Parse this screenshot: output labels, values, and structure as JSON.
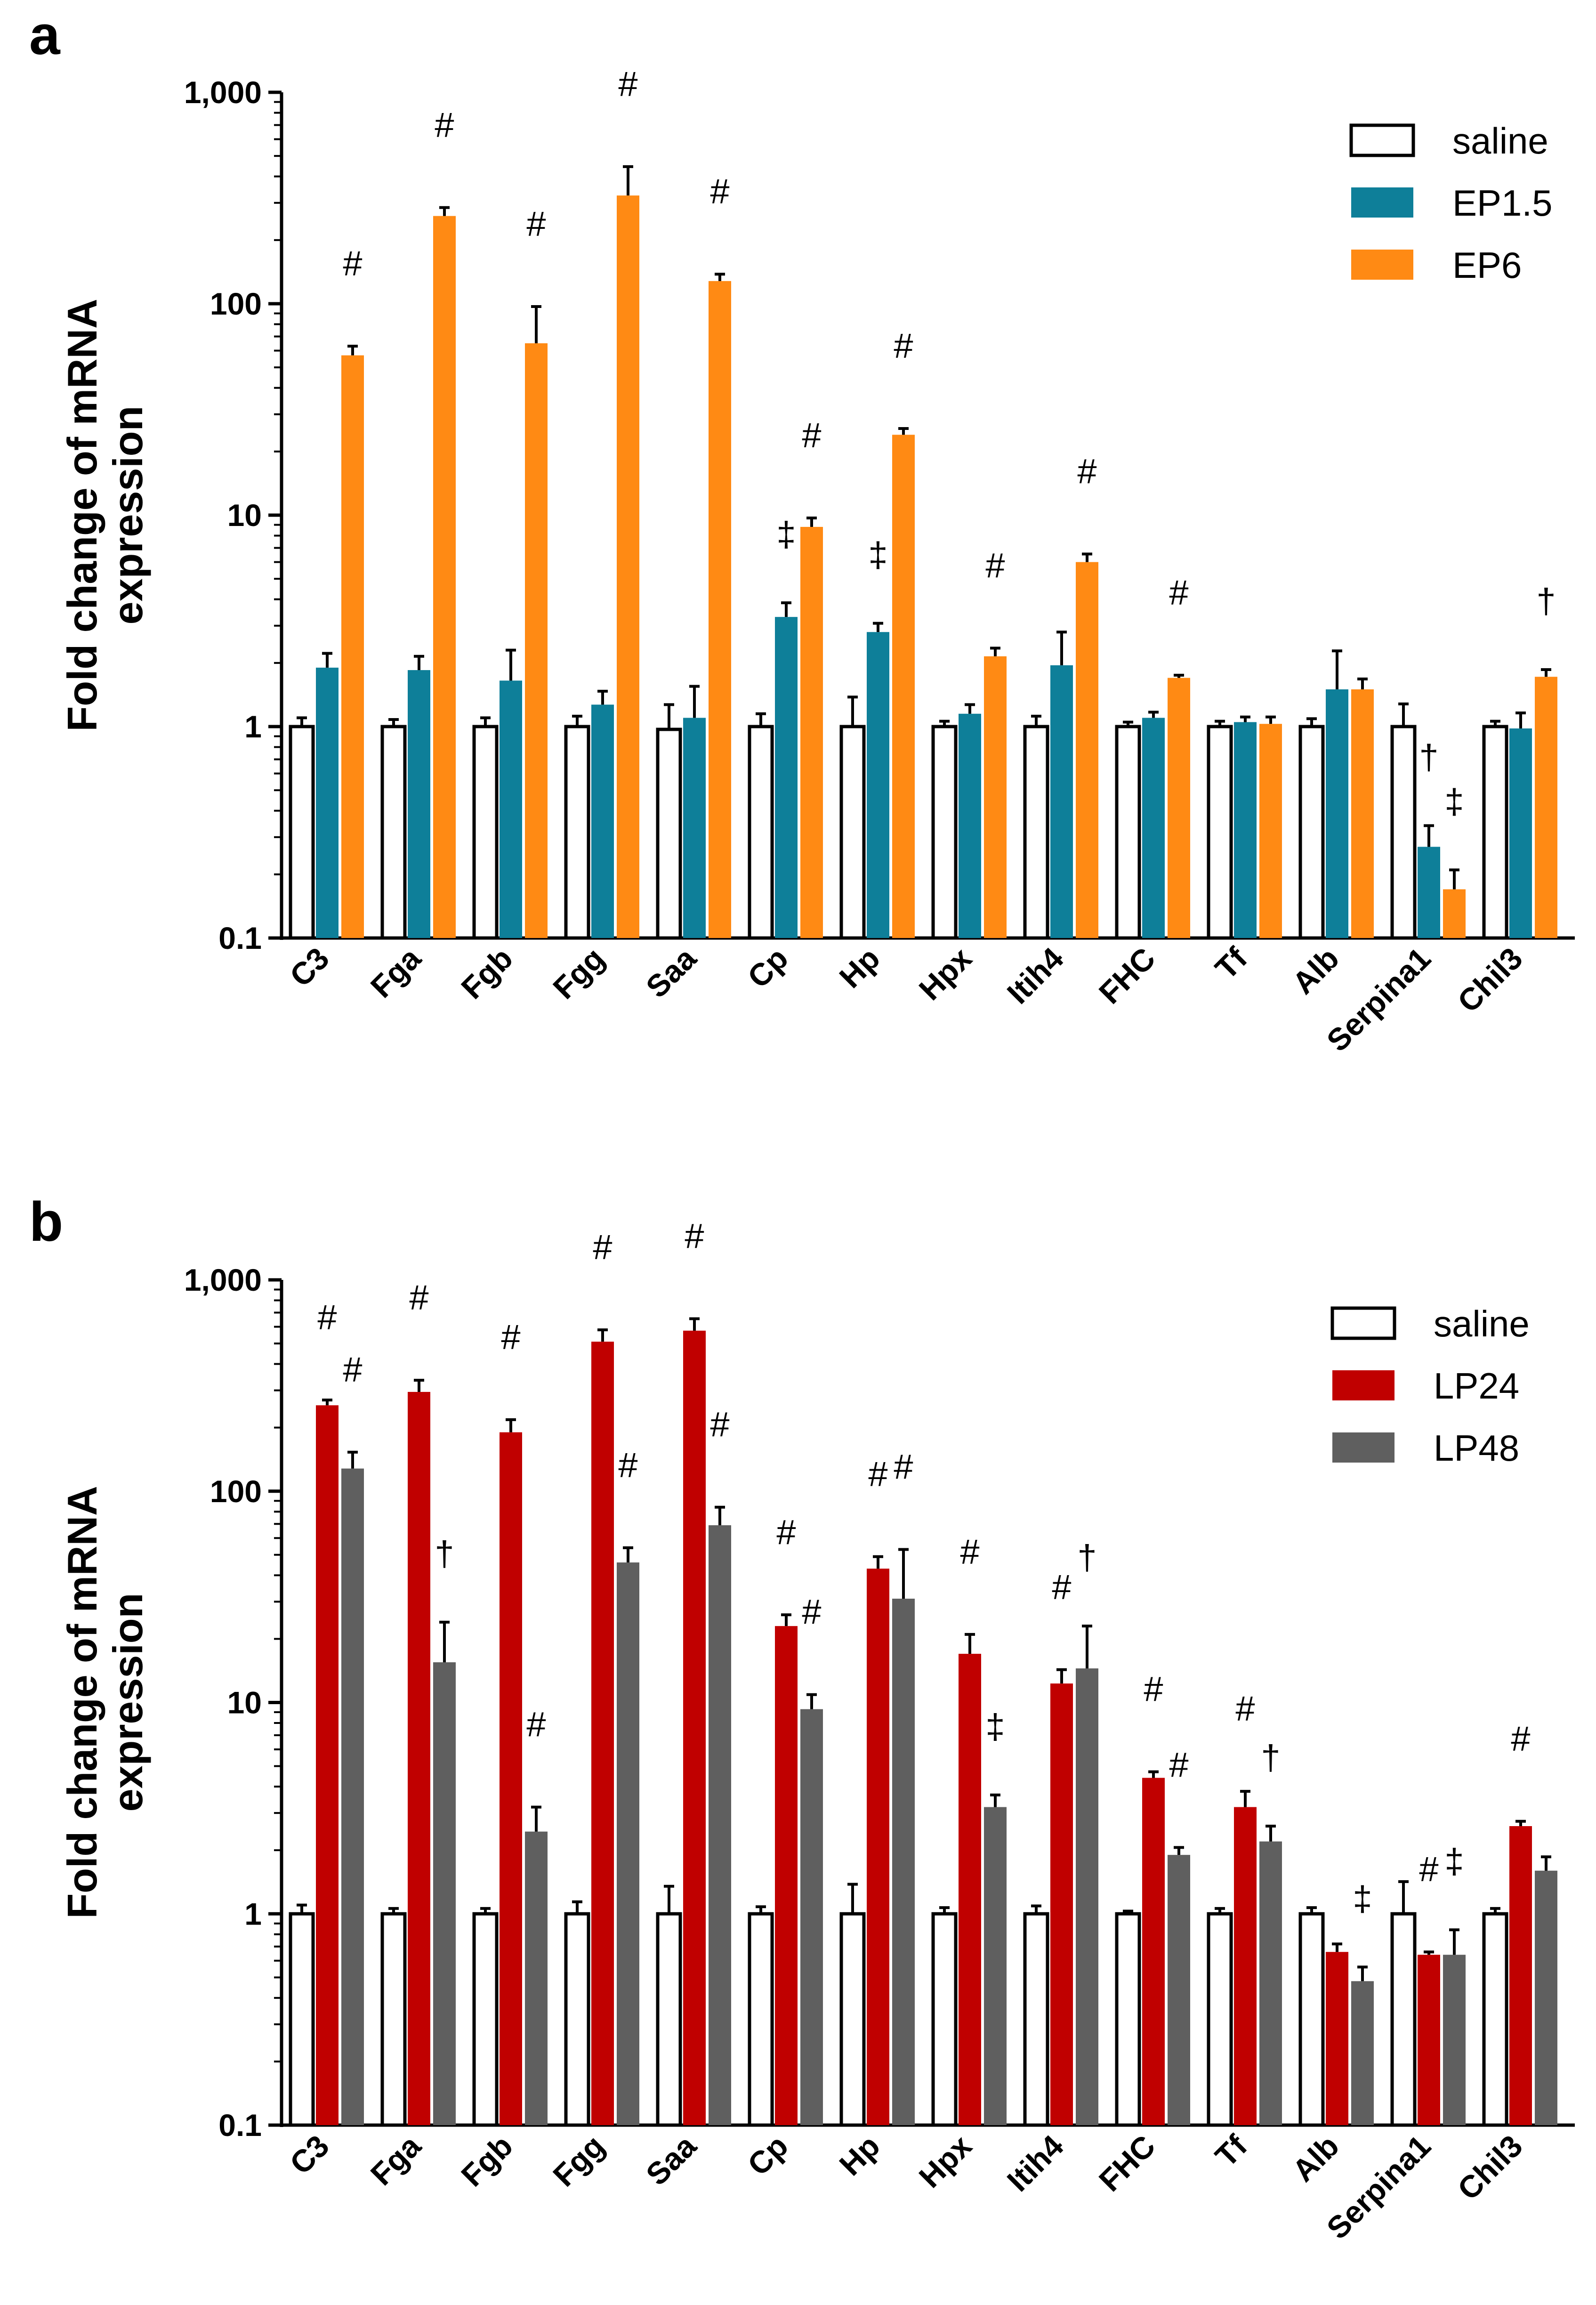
{
  "chart_data": [
    {
      "panel_label": "a",
      "type": "bar",
      "scale": "log",
      "ylabel": [
        "Fold change of mRNA",
        "expression"
      ],
      "ylim": [
        0.1,
        1000
      ],
      "yticks": [
        "0.1",
        "1",
        "10",
        "100",
        "1,000"
      ],
      "categories": [
        "C3",
        "Fga",
        "Fgb",
        "Fgg",
        "Saa",
        "Cp",
        "Hp",
        "Hpx",
        "Itih4",
        "FHC",
        "Tf",
        "Alb",
        "Serpina1",
        "Chil3"
      ],
      "legend_position": "top-right",
      "series": [
        {
          "name": "saline",
          "color": "#ffffff",
          "values": [
            1.0,
            1.0,
            1.0,
            1.0,
            0.97,
            1.0,
            1.0,
            1.0,
            1.0,
            1.0,
            1.0,
            1.0,
            1.0,
            1.0
          ],
          "errors": [
            0.1,
            0.08,
            0.1,
            0.12,
            0.3,
            0.15,
            0.38,
            0.06,
            0.12,
            0.05,
            0.06,
            0.09,
            0.28,
            0.06
          ]
        },
        {
          "name": "EP1.5",
          "color": "#0e7f99",
          "values": [
            1.9,
            1.85,
            1.65,
            1.27,
            1.1,
            3.3,
            2.8,
            1.15,
            1.95,
            1.1,
            1.05,
            1.5,
            0.27,
            0.98
          ],
          "errors": [
            0.32,
            0.3,
            0.65,
            0.2,
            0.45,
            0.55,
            0.28,
            0.12,
            0.85,
            0.07,
            0.06,
            0.78,
            0.07,
            0.18
          ]
        },
        {
          "name": "EP6",
          "color": "#ff8a14",
          "values": [
            57,
            260,
            65,
            325,
            128,
            8.8,
            24,
            2.15,
            6.0,
            1.7,
            1.03,
            1.5,
            0.17,
            1.72
          ]
        },
        {
          "errors": [
            6,
            25,
            32,
            120,
            10,
            0.9,
            1.7,
            0.2,
            0.55,
            0.05,
            0.08,
            0.18,
            0.04,
            0.14
          ]
        }
      ],
      "annotations": [
        {
          "category": "C3",
          "series": "EP6",
          "text": "#"
        },
        {
          "category": "Fga",
          "series": "EP6",
          "text": "#"
        },
        {
          "category": "Fgb",
          "series": "EP6",
          "text": "#"
        },
        {
          "category": "Fgg",
          "series": "EP6",
          "text": "#"
        },
        {
          "category": "Saa",
          "series": "EP6",
          "text": "#"
        },
        {
          "category": "Cp",
          "series": "EP1.5",
          "text": "‡"
        },
        {
          "category": "Cp",
          "series": "EP6",
          "text": "#"
        },
        {
          "category": "Hp",
          "series": "EP1.5",
          "text": "‡"
        },
        {
          "category": "Hp",
          "series": "EP6",
          "text": "#"
        },
        {
          "category": "Hpx",
          "series": "EP6",
          "text": "#"
        },
        {
          "category": "Itih4",
          "series": "EP6",
          "text": "#"
        },
        {
          "category": "FHC",
          "series": "EP6",
          "text": "#"
        },
        {
          "category": "Serpina1",
          "series": "EP1.5",
          "text": "†"
        },
        {
          "category": "Serpina1",
          "series": "EP6",
          "text": "‡"
        },
        {
          "category": "Chil3",
          "series": "EP6",
          "text": "†"
        }
      ]
    },
    {
      "panel_label": "b",
      "type": "bar",
      "scale": "log",
      "ylabel": [
        "Fold change of mRNA",
        "expression"
      ],
      "ylim": [
        0.1,
        1000
      ],
      "yticks": [
        "0.1",
        "1",
        "10",
        "100",
        "1,000"
      ],
      "categories": [
        "C3",
        "Fga",
        "Fgb",
        "Fgg",
        "Saa",
        "Cp",
        "Hp",
        "Hpx",
        "Itih4",
        "FHC",
        "Tf",
        "Alb",
        "Serpina1",
        "Chil3"
      ],
      "legend_position": "top-right",
      "series": [
        {
          "name": "saline",
          "color": "#ffffff",
          "values": [
            1.0,
            1.0,
            1.0,
            1.0,
            1.0,
            1.0,
            1.0,
            1.0,
            1.0,
            1.0,
            1.0,
            1.0,
            1.0,
            1.0
          ],
          "errors": [
            0.1,
            0.06,
            0.06,
            0.14,
            0.35,
            0.08,
            0.38,
            0.07,
            0.09,
            0.03,
            0.06,
            0.07,
            0.42,
            0.06
          ]
        },
        {
          "name": "LP24",
          "color": "#c00000",
          "values": [
            255,
            295,
            190,
            510,
            575,
            23,
            43,
            17,
            12.3,
            4.4,
            3.2,
            0.66,
            0.64,
            2.6
          ],
          "errors": [
            15,
            40,
            28,
            70,
            80,
            3,
            6,
            4,
            2,
            0.3,
            0.6,
            0.06,
            0.02,
            0.14
          ]
        },
        {
          "name": "LP48",
          "color": "#5f5f5f",
          "values": [
            128,
            15.5,
            2.45,
            46,
            69,
            9.3,
            31,
            3.2,
            14.5,
            1.9,
            2.2,
            0.48,
            0.64,
            1.6
          ],
          "errors": [
            25,
            8.5,
            0.75,
            8,
            15,
            1.6,
            22,
            0.45,
            8.5,
            0.16,
            0.4,
            0.08,
            0.2,
            0.26
          ]
        }
      ],
      "annotations": [
        {
          "category": "C3",
          "series": "LP24",
          "text": "#"
        },
        {
          "category": "C3",
          "series": "LP48",
          "text": "#"
        },
        {
          "category": "Fga",
          "series": "LP24",
          "text": "#"
        },
        {
          "category": "Fga",
          "series": "LP48",
          "text": "†"
        },
        {
          "category": "Fgb",
          "series": "LP24",
          "text": "#"
        },
        {
          "category": "Fgb",
          "series": "LP48",
          "text": "#"
        },
        {
          "category": "Fgg",
          "series": "LP24",
          "text": "#"
        },
        {
          "category": "Fgg",
          "series": "LP48",
          "text": "#"
        },
        {
          "category": "Saa",
          "series": "LP24",
          "text": "#"
        },
        {
          "category": "Saa",
          "series": "LP48",
          "text": "#"
        },
        {
          "category": "Cp",
          "series": "LP24",
          "text": "#"
        },
        {
          "category": "Cp",
          "series": "LP48",
          "text": "#"
        },
        {
          "category": "Hp",
          "series": "LP24",
          "text": "#"
        },
        {
          "category": "Hp",
          "series": "LP48",
          "text": "#"
        },
        {
          "category": "Hpx",
          "series": "LP24",
          "text": "#"
        },
        {
          "category": "Hpx",
          "series": "LP48",
          "text": "‡"
        },
        {
          "category": "Itih4",
          "series": "LP24",
          "text": "#"
        },
        {
          "category": "Itih4",
          "series": "LP48",
          "text": "†"
        },
        {
          "category": "FHC",
          "series": "LP24",
          "text": "#"
        },
        {
          "category": "FHC",
          "series": "LP48",
          "text": "#"
        },
        {
          "category": "Tf",
          "series": "LP24",
          "text": "#"
        },
        {
          "category": "Tf",
          "series": "LP48",
          "text": "†"
        },
        {
          "category": "Alb",
          "series": "LP48",
          "text": "‡"
        },
        {
          "category": "Serpina1",
          "series": "LP24",
          "text": "#"
        },
        {
          "category": "Serpina1",
          "series": "LP48",
          "text": "‡"
        },
        {
          "category": "Chil3",
          "series": "LP24",
          "text": "#"
        }
      ]
    }
  ]
}
